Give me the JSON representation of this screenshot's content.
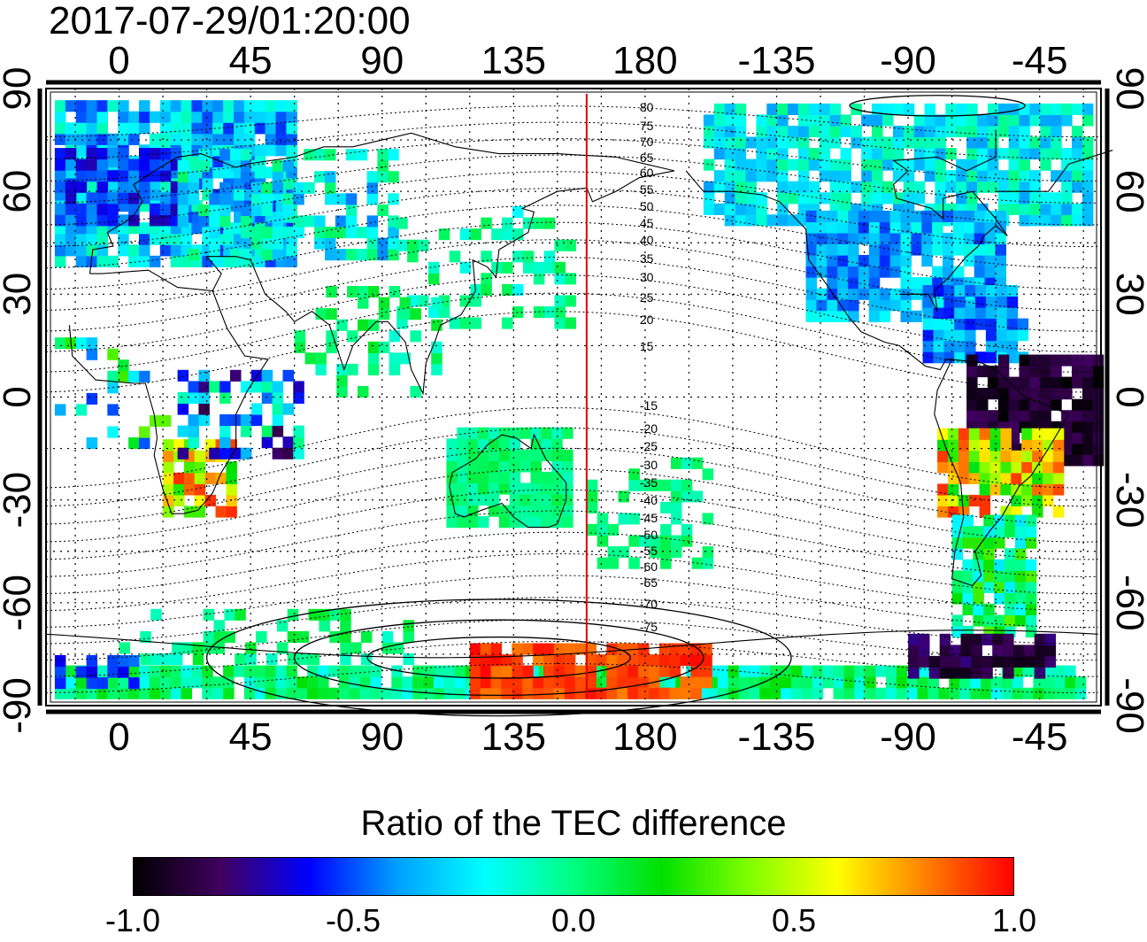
{
  "timestamp": "2017-07-29/01:20:00",
  "map": {
    "lon_ticks": [
      "0",
      "45",
      "90",
      "135",
      "180",
      "-135",
      "-90",
      "-45"
    ],
    "lon_values": [
      0,
      45,
      90,
      135,
      180,
      225,
      270,
      315
    ],
    "lat_ticks": [
      "90",
      "60",
      "30",
      "0",
      "-30",
      "-60",
      "-90"
    ],
    "lat_values": [
      90,
      60,
      30,
      0,
      -30,
      -60,
      -90
    ],
    "lon_range": [
      -25,
      336
    ],
    "lat_range": [
      -90,
      90
    ],
    "grid": "dotted",
    "meridian_marker_lon": 160,
    "meridian_marker_color": "#e00000",
    "contour_labels": [
      "80",
      "75",
      "70",
      "65",
      "60",
      "55",
      "50",
      "45",
      "40",
      "35",
      "30",
      "25",
      "20",
      "15",
      "-15",
      "-20",
      "-25",
      "-30",
      "-35",
      "-40",
      "-45",
      "-50",
      "-55",
      "-60",
      "-65",
      "-70",
      "-75"
    ]
  },
  "colorbar": {
    "title": "Ratio of the TEC difference",
    "ticks": [
      "-1.0",
      "-0.5",
      "0.0",
      "0.5",
      "1.0"
    ],
    "tick_values": [
      -1.0,
      -0.5,
      0.0,
      0.5,
      1.0
    ],
    "range": [
      -1.0,
      1.0
    ],
    "colors": [
      "#000000",
      "#400060",
      "#0000ff",
      "#00a0ff",
      "#00ffff",
      "#00ff80",
      "#00e000",
      "#80ff00",
      "#ffff00",
      "#ff8000",
      "#ff0000"
    ]
  }
}
